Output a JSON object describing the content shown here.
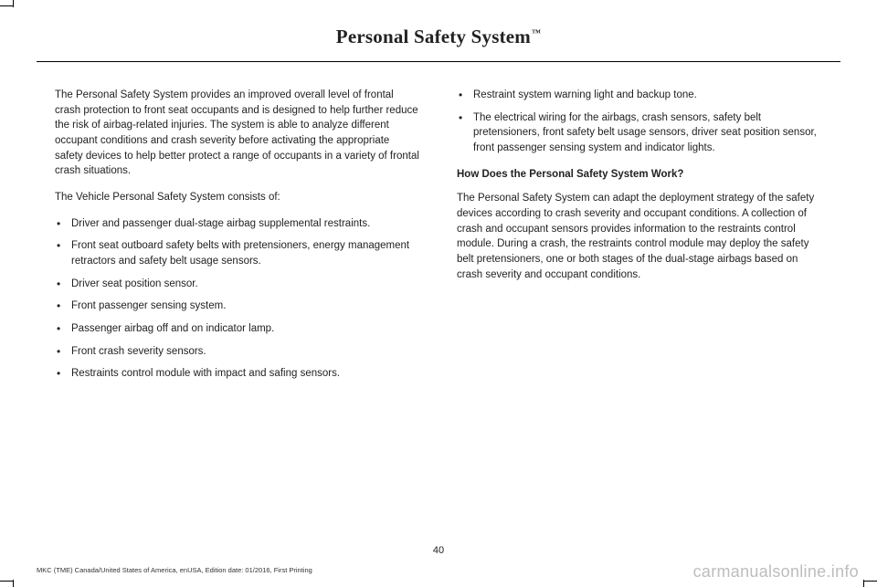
{
  "header": {
    "title": "Personal Safety System",
    "tm": "™"
  },
  "col1": {
    "p1": "The Personal Safety System provides an improved overall level of frontal crash protection to front seat occupants and is designed to help further reduce the risk of airbag-related injuries. The system is able to analyze different occupant conditions and crash severity before activating the appropriate safety devices to help better protect a range of occupants in a variety of frontal crash situations.",
    "p2": "The Vehicle Personal Safety System consists of:",
    "bullets": [
      "Driver and passenger dual-stage airbag supplemental restraints.",
      "Front seat outboard safety belts with pretensioners, energy management retractors and safety belt usage sensors.",
      "Driver seat position sensor.",
      "Front passenger sensing system.",
      "Passenger airbag off and on indicator lamp.",
      "Front crash severity sensors.",
      "Restraints control module with impact and safing sensors."
    ]
  },
  "col2": {
    "bullets": [
      "Restraint system warning light and backup tone.",
      "The electrical wiring for the airbags, crash sensors, safety belt pretensioners, front safety belt usage sensors, driver seat position sensor, front passenger sensing system and indicator lights."
    ],
    "subhead": "How Does the Personal Safety System Work?",
    "p1": "The Personal Safety System can adapt the deployment strategy of the safety devices according to crash severity and occupant conditions. A collection of crash and occupant sensors provides information to the restraints control module. During a crash, the restraints control module may deploy the safety belt pretensioners, one or both stages of the dual-stage airbags based on crash severity and occupant conditions."
  },
  "pageNumber": "40",
  "footnote": "MKC (TME) Canada/United States of America, enUSA, Edition date: 01/2016, First Printing",
  "watermark": "carmanualsonline.info"
}
